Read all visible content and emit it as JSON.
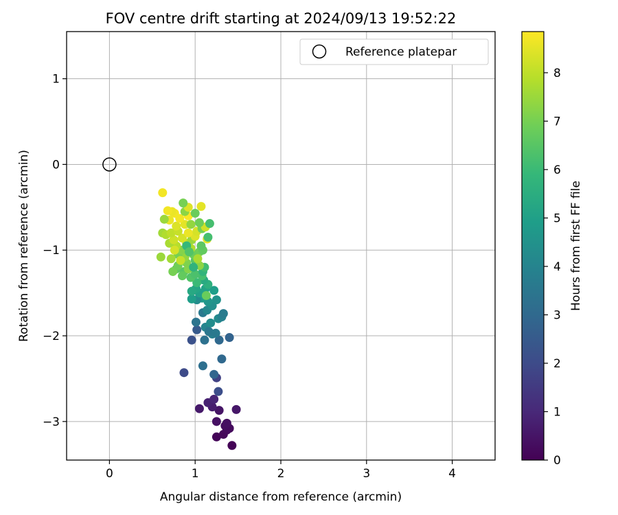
{
  "chart_data": {
    "type": "scatter",
    "title": "FOV centre drift starting at 2024/09/13 19:52:22",
    "xlabel": "Angular distance from reference (arcmin)",
    "ylabel": "Rotation from reference (arcmin)",
    "xlim": [
      -0.5,
      4.5
    ],
    "ylim": [
      -3.45,
      1.55
    ],
    "xticks": [
      0,
      1,
      2,
      3,
      4
    ],
    "yticks": [
      1,
      0,
      -1,
      -2,
      -3
    ],
    "xtick_labels": [
      "0",
      "1",
      "2",
      "3",
      "4"
    ],
    "ytick_labels": [
      "1",
      "0",
      "−1",
      "−2",
      "−3"
    ],
    "grid": true,
    "legend": {
      "position": "top-right",
      "entries": [
        "Reference platepar"
      ]
    },
    "reference_point": {
      "x": 0,
      "y": 0
    },
    "colorbar": {
      "label": "Hours from first FF file",
      "range": [
        0,
        8.85
      ],
      "ticks": [
        0,
        1,
        2,
        3,
        4,
        5,
        6,
        7,
        8
      ],
      "tick_labels": [
        "0",
        "1",
        "2",
        "3",
        "4",
        "5",
        "6",
        "7",
        "8"
      ],
      "colormap": "viridis",
      "colors": [
        "#440154",
        "#482878",
        "#3e4a89",
        "#31688e",
        "#26828e",
        "#1f9e89",
        "#35b779",
        "#6ece58",
        "#b5de2b",
        "#fde725"
      ]
    },
    "series": [
      {
        "points": [
          {
            "x": 1.43,
            "y": -3.28,
            "c": 0.05
          },
          {
            "x": 1.25,
            "y": -3.18,
            "c": 0.1
          },
          {
            "x": 1.33,
            "y": -3.15,
            "c": 0.15
          },
          {
            "x": 1.37,
            "y": -3.1,
            "c": 0.2
          },
          {
            "x": 1.4,
            "y": -3.08,
            "c": 0.25
          },
          {
            "x": 1.35,
            "y": -3.05,
            "c": 0.3
          },
          {
            "x": 1.37,
            "y": -3.02,
            "c": 0.35
          },
          {
            "x": 1.25,
            "y": -3.0,
            "c": 0.4
          },
          {
            "x": 1.28,
            "y": -2.87,
            "c": 0.5
          },
          {
            "x": 1.48,
            "y": -2.86,
            "c": 0.55
          },
          {
            "x": 1.05,
            "y": -2.85,
            "c": 0.6
          },
          {
            "x": 1.2,
            "y": -2.83,
            "c": 0.7
          },
          {
            "x": 1.15,
            "y": -2.78,
            "c": 0.8
          },
          {
            "x": 1.22,
            "y": -2.74,
            "c": 0.9
          },
          {
            "x": 1.27,
            "y": -2.65,
            "c": 2.1
          },
          {
            "x": 1.25,
            "y": -2.49,
            "c": 1.7
          },
          {
            "x": 1.22,
            "y": -2.45,
            "c": 2.9
          },
          {
            "x": 0.87,
            "y": -2.43,
            "c": 2.0
          },
          {
            "x": 1.09,
            "y": -2.35,
            "c": 3.2
          },
          {
            "x": 1.31,
            "y": -2.27,
            "c": 3.0
          },
          {
            "x": 0.96,
            "y": -2.05,
            "c": 2.2
          },
          {
            "x": 1.11,
            "y": -2.05,
            "c": 3.3
          },
          {
            "x": 1.28,
            "y": -2.05,
            "c": 3.0
          },
          {
            "x": 1.4,
            "y": -2.02,
            "c": 2.8
          },
          {
            "x": 1.2,
            "y": -1.98,
            "c": 3.8
          },
          {
            "x": 1.02,
            "y": -1.93,
            "c": 2.5
          },
          {
            "x": 1.12,
            "y": -1.9,
            "c": 4.0
          },
          {
            "x": 1.16,
            "y": -1.95,
            "c": 3.5
          },
          {
            "x": 1.24,
            "y": -1.97,
            "c": 3.6
          },
          {
            "x": 1.01,
            "y": -1.84,
            "c": 3.4
          },
          {
            "x": 1.18,
            "y": -1.85,
            "c": 4.3
          },
          {
            "x": 1.27,
            "y": -1.8,
            "c": 4.2
          },
          {
            "x": 1.31,
            "y": -1.78,
            "c": 3.9
          },
          {
            "x": 1.33,
            "y": -1.74,
            "c": 3.7
          },
          {
            "x": 1.09,
            "y": -1.73,
            "c": 3.6
          },
          {
            "x": 1.14,
            "y": -1.7,
            "c": 4.1
          },
          {
            "x": 1.2,
            "y": -1.65,
            "c": 4.4
          },
          {
            "x": 1.25,
            "y": -1.58,
            "c": 4.5
          },
          {
            "x": 1.15,
            "y": -1.6,
            "c": 4.6
          },
          {
            "x": 1.08,
            "y": -1.56,
            "c": 4.8
          },
          {
            "x": 1.02,
            "y": -1.58,
            "c": 4.3
          },
          {
            "x": 0.96,
            "y": -1.57,
            "c": 4.9
          },
          {
            "x": 1.05,
            "y": -1.5,
            "c": 5.0
          },
          {
            "x": 1.12,
            "y": -1.45,
            "c": 5.1
          },
          {
            "x": 1.22,
            "y": -1.47,
            "c": 4.9
          },
          {
            "x": 1.01,
            "y": -1.45,
            "c": 5.2
          },
          {
            "x": 0.96,
            "y": -1.48,
            "c": 5.3
          },
          {
            "x": 1.13,
            "y": -1.53,
            "c": 6.8
          },
          {
            "x": 1.15,
            "y": -1.4,
            "c": 5.6
          },
          {
            "x": 1.1,
            "y": -1.35,
            "c": 5.4
          },
          {
            "x": 1.02,
            "y": -1.38,
            "c": 6.0
          },
          {
            "x": 1.08,
            "y": -1.3,
            "c": 6.2
          },
          {
            "x": 0.95,
            "y": -1.32,
            "c": 6.4
          },
          {
            "x": 0.87,
            "y": -1.25,
            "c": 6.5
          },
          {
            "x": 1.0,
            "y": -1.28,
            "c": 6.3
          },
          {
            "x": 1.09,
            "y": -1.25,
            "c": 5.8
          },
          {
            "x": 1.11,
            "y": -1.2,
            "c": 6.1
          },
          {
            "x": 0.85,
            "y": -1.3,
            "c": 6.7
          },
          {
            "x": 0.92,
            "y": -1.22,
            "c": 7.2
          },
          {
            "x": 0.78,
            "y": -1.22,
            "c": 6.6
          },
          {
            "x": 0.74,
            "y": -1.25,
            "c": 7.0
          },
          {
            "x": 0.8,
            "y": -1.18,
            "c": 6.9
          },
          {
            "x": 0.9,
            "y": -1.15,
            "c": 7.1
          },
          {
            "x": 1.0,
            "y": -1.12,
            "c": 6.5
          },
          {
            "x": 1.05,
            "y": -1.18,
            "c": 7.3
          },
          {
            "x": 0.98,
            "y": -1.05,
            "c": 6.8
          },
          {
            "x": 0.88,
            "y": -1.08,
            "c": 7.4
          },
          {
            "x": 0.8,
            "y": -1.05,
            "c": 7.0
          },
          {
            "x": 0.72,
            "y": -1.1,
            "c": 7.6
          },
          {
            "x": 0.6,
            "y": -1.08,
            "c": 7.5
          },
          {
            "x": 0.84,
            "y": -1.0,
            "c": 7.2
          },
          {
            "x": 0.95,
            "y": -0.98,
            "c": 7.8
          },
          {
            "x": 1.05,
            "y": -1.02,
            "c": 6.9
          },
          {
            "x": 1.09,
            "y": -1.0,
            "c": 6.7
          },
          {
            "x": 1.07,
            "y": -0.95,
            "c": 6.6
          },
          {
            "x": 0.9,
            "y": -0.92,
            "c": 8.0
          },
          {
            "x": 0.78,
            "y": -0.95,
            "c": 7.9
          },
          {
            "x": 0.7,
            "y": -0.92,
            "c": 7.7
          },
          {
            "x": 0.75,
            "y": -0.88,
            "c": 8.2
          },
          {
            "x": 0.85,
            "y": -0.86,
            "c": 8.3
          },
          {
            "x": 0.96,
            "y": -0.88,
            "c": 7.5
          },
          {
            "x": 1.0,
            "y": -0.84,
            "c": 8.4
          },
          {
            "x": 1.14,
            "y": -0.87,
            "c": 8.5
          },
          {
            "x": 1.15,
            "y": -0.85,
            "c": 6.2
          },
          {
            "x": 0.62,
            "y": -0.8,
            "c": 7.6
          },
          {
            "x": 0.66,
            "y": -0.82,
            "c": 7.8
          },
          {
            "x": 0.72,
            "y": -0.8,
            "c": 8.0
          },
          {
            "x": 0.8,
            "y": -0.78,
            "c": 8.1
          },
          {
            "x": 0.92,
            "y": -0.8,
            "c": 8.6
          },
          {
            "x": 1.02,
            "y": -0.78,
            "c": 8.3
          },
          {
            "x": 1.08,
            "y": -0.75,
            "c": 7.0
          },
          {
            "x": 1.12,
            "y": -0.73,
            "c": 8.2
          },
          {
            "x": 0.78,
            "y": -0.72,
            "c": 8.4
          },
          {
            "x": 0.88,
            "y": -0.7,
            "c": 8.5
          },
          {
            "x": 0.95,
            "y": -0.7,
            "c": 7.4
          },
          {
            "x": 1.05,
            "y": -0.68,
            "c": 6.9
          },
          {
            "x": 1.17,
            "y": -0.69,
            "c": 6.2
          },
          {
            "x": 0.7,
            "y": -0.65,
            "c": 8.6
          },
          {
            "x": 0.64,
            "y": -0.64,
            "c": 7.5
          },
          {
            "x": 0.82,
            "y": -0.63,
            "c": 8.7
          },
          {
            "x": 0.92,
            "y": -0.6,
            "c": 8.8
          },
          {
            "x": 1.0,
            "y": -0.57,
            "c": 6.8
          },
          {
            "x": 0.76,
            "y": -0.57,
            "c": 8.7
          },
          {
            "x": 0.73,
            "y": -0.55,
            "c": 8.6
          },
          {
            "x": 0.68,
            "y": -0.54,
            "c": 8.7
          },
          {
            "x": 0.88,
            "y": -0.55,
            "c": 7.3
          },
          {
            "x": 0.92,
            "y": -0.5,
            "c": 8.4
          },
          {
            "x": 1.07,
            "y": -0.49,
            "c": 8.5
          },
          {
            "x": 0.86,
            "y": -0.45,
            "c": 7.0
          },
          {
            "x": 0.62,
            "y": -0.33,
            "c": 8.7
          },
          {
            "x": 0.9,
            "y": -0.95,
            "c": 5.9
          },
          {
            "x": 0.98,
            "y": -1.2,
            "c": 5.7
          },
          {
            "x": 1.03,
            "y": -1.1,
            "c": 7.7
          },
          {
            "x": 0.83,
            "y": -1.12,
            "c": 8.1
          },
          {
            "x": 0.93,
            "y": -1.02,
            "c": 6.4
          },
          {
            "x": 0.76,
            "y": -1.0,
            "c": 8.3
          }
        ]
      }
    ]
  }
}
